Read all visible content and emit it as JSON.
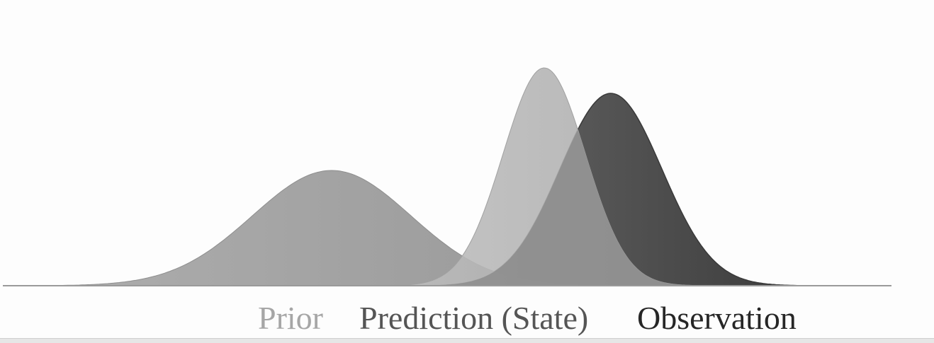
{
  "labels": {
    "prior": "Prior",
    "prediction": "Prediction (State)",
    "observation": "Observation"
  },
  "colors": {
    "prior_curve": "#999999",
    "prediction_curve": "#b2b2b2",
    "observation_curve": "#4a4a4a",
    "overlap_curve": "#8a8a8a",
    "axis": "#9a9a9a",
    "prior_text": "#a6a6a6",
    "prediction_text": "#555555",
    "observation_text": "#262626"
  }
}
